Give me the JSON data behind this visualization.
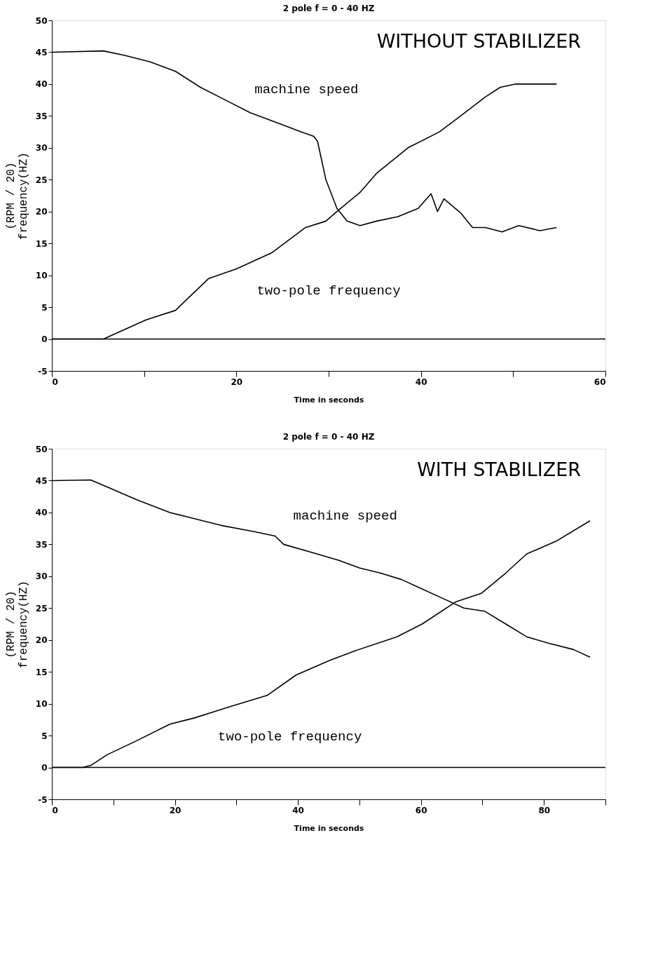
{
  "chart_data": [
    {
      "type": "line",
      "title": "2 pole f = 0 - 40 HZ",
      "xlabel": "Time in seconds",
      "ylabel": "(RPM / 20)\nfrequency(HZ)",
      "annotations": [
        "WITHOUT STABILIZER"
      ],
      "series": [
        {
          "name": "machine speed",
          "color": "#000000",
          "x": [
            0,
            5.6,
            7.9,
            10.6,
            13.4,
            16.1,
            18.8,
            21.5,
            24.3,
            27,
            28.4,
            28.8,
            29.7,
            30.9,
            32,
            33.4,
            35.2,
            37.5,
            39.7,
            41.1,
            41.8,
            42.5,
            44.3,
            45.6,
            47,
            48.8,
            50.6,
            52.9,
            54.7
          ],
          "values": [
            45,
            45.2,
            44.5,
            43.5,
            42,
            39.5,
            37.5,
            35.5,
            34,
            32.5,
            31.8,
            31,
            25,
            20.5,
            18.5,
            17.8,
            18.5,
            19.2,
            20.5,
            22.8,
            20,
            22,
            19.8,
            17.5,
            17.5,
            16.8,
            17.8,
            17,
            17.5
          ]
        },
        {
          "name": "two-pole frequency",
          "color": "#000000",
          "x": [
            0,
            5.6,
            10.2,
            13.4,
            15.2,
            17,
            20,
            23.8,
            27.5,
            29.7,
            30.9,
            33.4,
            35.2,
            38.6,
            42,
            44.3,
            47,
            48.6,
            50.2,
            54.7
          ],
          "values": [
            0,
            0,
            3,
            4.5,
            7,
            9.5,
            11,
            13.5,
            17.5,
            18.5,
            20,
            23,
            26,
            30,
            32.5,
            35,
            38,
            39.5,
            40,
            40
          ]
        }
      ],
      "xlim": [
        0,
        60
      ],
      "xticks": [
        0,
        {
          "value": 10,
          "label": null
        },
        20,
        {
          "value": 30,
          "label": null
        },
        40,
        {
          "value": 50,
          "label": null
        },
        60
      ],
      "ylim": [
        -5,
        50
      ],
      "yticks": [
        -5,
        0,
        5,
        10,
        15,
        20,
        25,
        30,
        35,
        40,
        45,
        50
      ],
      "ref_lines": [
        {
          "axis": "y",
          "value": 0
        }
      ],
      "grid": false,
      "legend": false
    },
    {
      "type": "line",
      "title": "2 pole f = 0 - 40 HZ",
      "xlabel": "Time in seconds",
      "ylabel": "(RPM / 20)\nfrequency(HZ)",
      "annotations": [
        "WITH STABILIZER"
      ],
      "series": [
        {
          "name": "machine speed",
          "color": "#000000",
          "x": [
            0,
            6.3,
            9,
            13.8,
            19.2,
            23.3,
            27.4,
            32.9,
            36.3,
            37.7,
            43.1,
            46.6,
            50,
            53.4,
            56.8,
            60.2,
            63.6,
            67,
            70.4,
            73.8,
            77.2,
            80.7,
            84.8,
            87.5
          ],
          "values": [
            45,
            45.1,
            44,
            42,
            40,
            39,
            38,
            37,
            36.3,
            35,
            33.5,
            32.5,
            31.3,
            30.5,
            29.5,
            28,
            26.5,
            25,
            24.5,
            22.5,
            20.5,
            19.5,
            18.5,
            17.3
          ]
        },
        {
          "name": "two-pole frequency",
          "color": "#000000",
          "x": [
            0,
            5,
            6.3,
            9,
            13.8,
            19.2,
            23.3,
            28.8,
            35,
            39.7,
            45.2,
            49.3,
            56.1,
            60.2,
            65.7,
            69.8,
            73.8,
            77.2,
            82,
            87.5
          ],
          "values": [
            0,
            0,
            0.3,
            2,
            4.2,
            6.8,
            7.8,
            9.5,
            11.3,
            14.5,
            16.8,
            18.3,
            20.5,
            22.5,
            26,
            27.3,
            30.5,
            33.5,
            35.5,
            38.7
          ]
        }
      ],
      "xlim": [
        0,
        90
      ],
      "xticks": [
        0,
        {
          "value": 10,
          "label": null
        },
        20,
        {
          "value": 30,
          "label": null
        },
        40,
        {
          "value": 50,
          "label": null
        },
        60,
        {
          "value": 70,
          "label": null
        },
        80,
        {
          "value": 90,
          "label": null
        }
      ],
      "ylim": [
        -5,
        50
      ],
      "yticks": [
        -5,
        0,
        5,
        10,
        15,
        20,
        25,
        30,
        35,
        40,
        45,
        50
      ],
      "ref_lines": [
        {
          "axis": "y",
          "value": 0
        }
      ],
      "grid": false,
      "legend": false
    }
  ]
}
